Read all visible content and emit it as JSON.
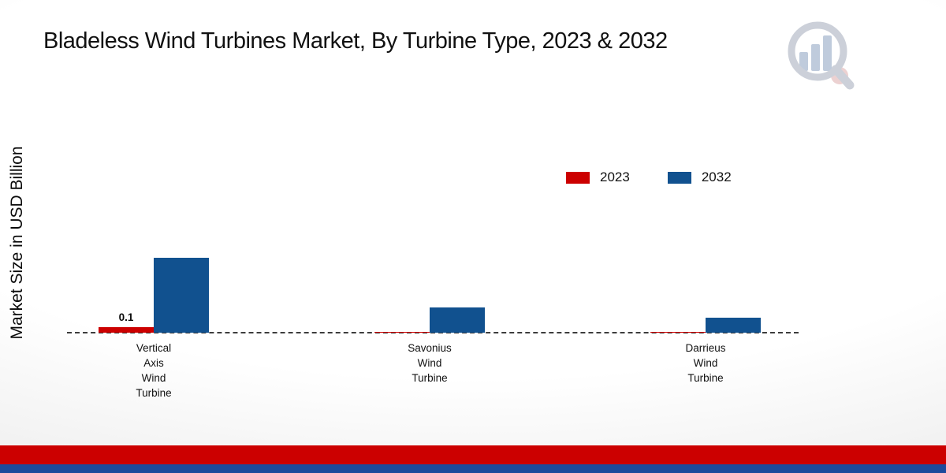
{
  "title": "Bladeless Wind Turbines Market, By Turbine Type, 2023 & 2032",
  "y_axis_label": "Market Size in USD Billion",
  "chart_data": {
    "type": "bar",
    "title": "Bladeless Wind Turbines Market, By Turbine Type, 2023 & 2032",
    "categories": [
      "Vertical Axis Wind Turbine",
      "Savonius Wind Turbine",
      "Darrieus Wind Turbine"
    ],
    "series": [
      {
        "name": "2023",
        "color": "#cc0000",
        "values": [
          0.1,
          0.02,
          0.02
        ]
      },
      {
        "name": "2032",
        "color": "#11518f",
        "values": [
          1.4,
          0.47,
          0.28
        ]
      }
    ],
    "data_labels": [
      {
        "series_index": 0,
        "category_index": 0,
        "text": "0.1"
      }
    ],
    "xlabel": "",
    "ylabel": "Market Size in USD Billion",
    "ylim": [
      0,
      1.5
    ],
    "grid": false,
    "baseline_style": "dashed",
    "legend_position": "top-right"
  },
  "footer": {
    "red_band_color": "#cc0000",
    "blue_band_color": "#1c4a9c"
  },
  "logo": {
    "name": "market-research-chart-logo"
  }
}
